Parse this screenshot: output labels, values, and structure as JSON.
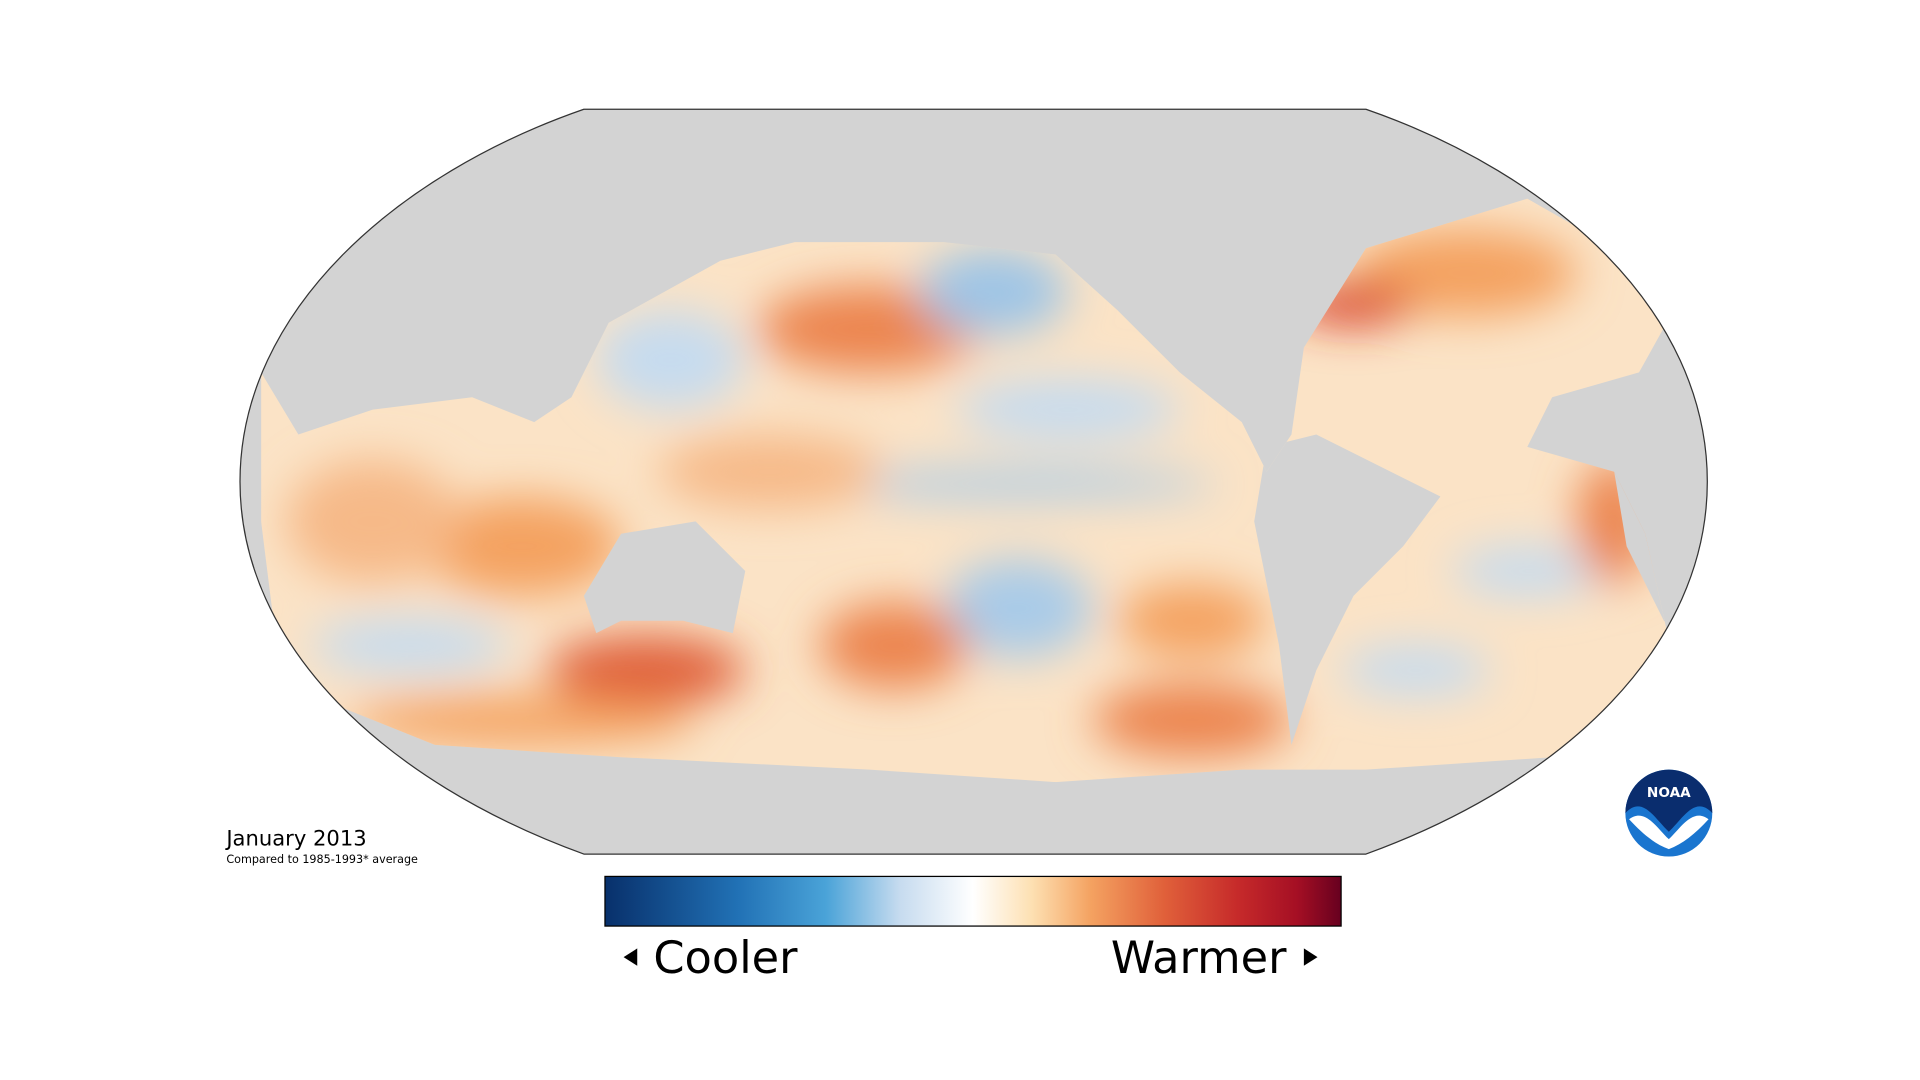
{
  "title": "January 2013",
  "subtitle": "Compared to 1985-1993* average",
  "legend": {
    "low": "Cooler",
    "high": "Warmer"
  },
  "logo": "NOAA"
}
